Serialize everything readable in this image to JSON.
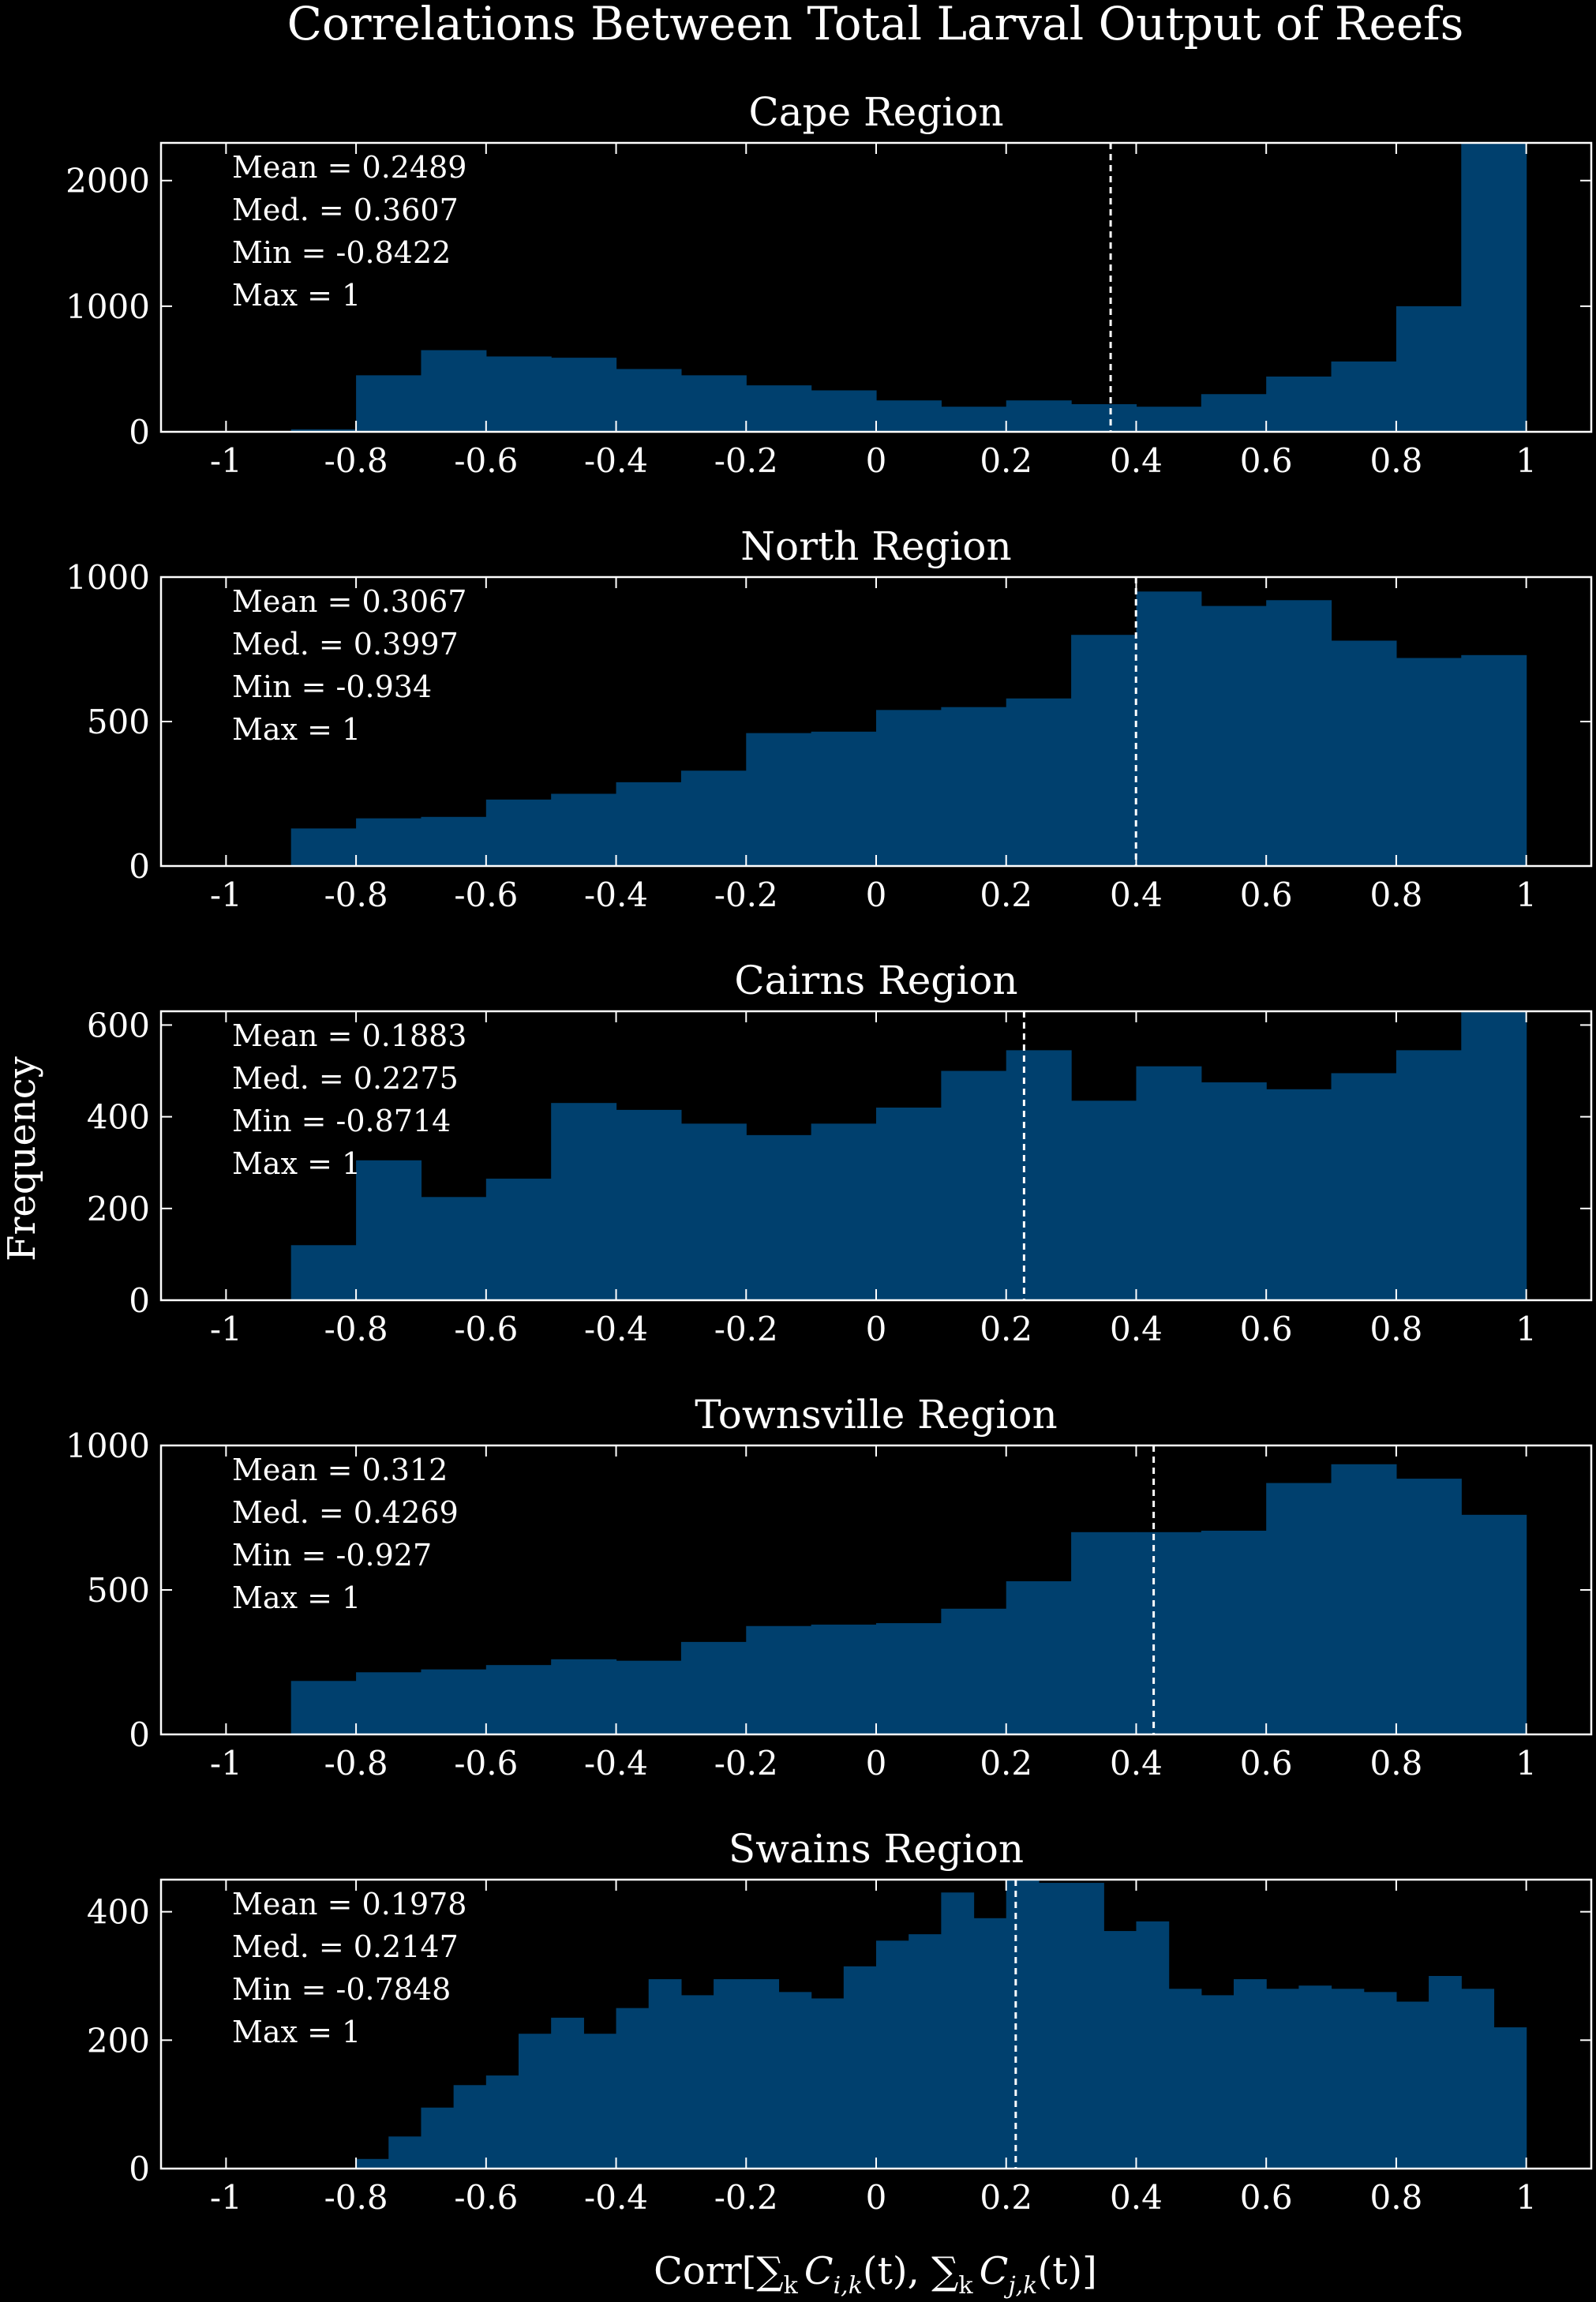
{
  "figure": {
    "title": "Correlations Between Total Larval Output of Reefs",
    "ylabel": "Frequency",
    "xlabel": "Corr[∑k Ci,k(t), ∑k Cj,k(t)]",
    "xlabel_parts": {
      "pre": "Corr[",
      "sum1": "∑",
      "sub_k1": "k",
      "c1": "C",
      "sub_ik": "i,k",
      "t1": "(t), ",
      "sum2": "∑",
      "sub_k2": "k",
      "c2": "C",
      "sub_jk": "j,k",
      "t2": "(t)]"
    },
    "bar_color": "#00406e",
    "background": "#000000",
    "foreground": "#ffffff"
  },
  "chart_data": [
    {
      "type": "bar",
      "title": "Cape Region",
      "xlim": [
        -1.1,
        1.1
      ],
      "ylim": [
        0,
        2300
      ],
      "yticks": [
        0,
        1000,
        2000
      ],
      "xticks": [
        -1,
        -0.8,
        -0.6,
        -0.4,
        -0.2,
        0,
        0.2,
        0.4,
        0.6,
        0.8,
        1
      ],
      "xtick_labels": [
        "-1",
        "-0.8",
        "-0.6",
        "-0.4",
        "-0.2",
        "0",
        "0.2",
        "0.4",
        "0.6",
        "0.8",
        "1"
      ],
      "bin_edges": [
        -0.9,
        -0.8,
        -0.7,
        -0.6,
        -0.5,
        -0.4,
        -0.3,
        -0.2,
        -0.1,
        0.0,
        0.1,
        0.2,
        0.3,
        0.4,
        0.5,
        0.6,
        0.7,
        0.8,
        0.9,
        1.0
      ],
      "values": [
        20,
        450,
        650,
        600,
        590,
        500,
        450,
        370,
        330,
        250,
        200,
        250,
        220,
        200,
        300,
        440,
        560,
        1000,
        2300
      ],
      "mean_line": 0.3607,
      "stats": [
        "Mean = 0.2489",
        "Med. = 0.3607",
        "Min = -0.8422",
        "Max = 1"
      ]
    },
    {
      "type": "bar",
      "title": "North Region",
      "xlim": [
        -1.1,
        1.1
      ],
      "ylim": [
        0,
        1000
      ],
      "yticks": [
        0,
        500,
        1000
      ],
      "xticks": [
        -1,
        -0.8,
        -0.6,
        -0.4,
        -0.2,
        0,
        0.2,
        0.4,
        0.6,
        0.8,
        1
      ],
      "xtick_labels": [
        "-1",
        "-0.8",
        "-0.6",
        "-0.4",
        "-0.2",
        "0",
        "0.2",
        "0.4",
        "0.6",
        "0.8",
        "1"
      ],
      "bin_edges": [
        -0.9,
        -0.8,
        -0.7,
        -0.6,
        -0.5,
        -0.4,
        -0.3,
        -0.2,
        -0.1,
        0.0,
        0.1,
        0.2,
        0.3,
        0.4,
        0.5,
        0.6,
        0.7,
        0.8,
        0.9,
        1.0
      ],
      "values": [
        130,
        165,
        170,
        230,
        250,
        290,
        330,
        460,
        465,
        540,
        550,
        580,
        800,
        950,
        900,
        920,
        780,
        720,
        730
      ],
      "mean_line": 0.3997,
      "stats": [
        "Mean = 0.3067",
        "Med. = 0.3997",
        "Min = -0.934",
        "Max = 1"
      ]
    },
    {
      "type": "bar",
      "title": "Cairns Region",
      "xlim": [
        -1.1,
        1.1
      ],
      "ylim": [
        0,
        630
      ],
      "yticks": [
        0,
        200,
        400,
        600
      ],
      "xticks": [
        -1,
        -0.8,
        -0.6,
        -0.4,
        -0.2,
        0,
        0.2,
        0.4,
        0.6,
        0.8,
        1
      ],
      "xtick_labels": [
        "-1",
        "-0.8",
        "-0.6",
        "-0.4",
        "-0.2",
        "0",
        "0.2",
        "0.4",
        "0.6",
        "0.8",
        "1"
      ],
      "bin_edges": [
        -0.9,
        -0.8,
        -0.7,
        -0.6,
        -0.5,
        -0.4,
        -0.3,
        -0.2,
        -0.1,
        0.0,
        0.1,
        0.2,
        0.3,
        0.4,
        0.5,
        0.6,
        0.7,
        0.8,
        0.9,
        1.0
      ],
      "values": [
        120,
        305,
        225,
        265,
        430,
        415,
        385,
        360,
        385,
        420,
        500,
        545,
        435,
        510,
        475,
        460,
        495,
        545,
        630
      ],
      "mean_line": 0.2275,
      "stats": [
        "Mean = 0.1883",
        "Med. = 0.2275",
        "Min = -0.8714",
        "Max = 1"
      ]
    },
    {
      "type": "bar",
      "title": "Townsville Region",
      "xlim": [
        -1.1,
        1.1
      ],
      "ylim": [
        0,
        1000
      ],
      "yticks": [
        0,
        500,
        1000
      ],
      "xticks": [
        -1,
        -0.8,
        -0.6,
        -0.4,
        -0.2,
        0,
        0.2,
        0.4,
        0.6,
        0.8,
        1
      ],
      "xtick_labels": [
        "-1",
        "-0.8",
        "-0.6",
        "-0.4",
        "-0.2",
        "0",
        "0.2",
        "0.4",
        "0.6",
        "0.8",
        "1"
      ],
      "bin_edges": [
        -0.9,
        -0.8,
        -0.7,
        -0.6,
        -0.5,
        -0.4,
        -0.3,
        -0.2,
        -0.1,
        0.0,
        0.1,
        0.2,
        0.3,
        0.4,
        0.5,
        0.6,
        0.7,
        0.8,
        0.9,
        1.0
      ],
      "values": [
        185,
        215,
        225,
        240,
        260,
        255,
        320,
        375,
        380,
        385,
        435,
        530,
        700,
        700,
        705,
        870,
        935,
        885,
        760
      ],
      "mean_line": 0.4269,
      "stats": [
        "Mean = 0.312",
        "Med. = 0.4269",
        "Min = -0.927",
        "Max = 1"
      ]
    },
    {
      "type": "bar",
      "title": "Swains Region",
      "xlim": [
        -1.1,
        1.1
      ],
      "ylim": [
        0,
        450
      ],
      "yticks": [
        0,
        200,
        400
      ],
      "xticks": [
        -1,
        -0.8,
        -0.6,
        -0.4,
        -0.2,
        0,
        0.2,
        0.4,
        0.6,
        0.8,
        1
      ],
      "xtick_labels": [
        "-1",
        "-0.8",
        "-0.6",
        "-0.4",
        "-0.2",
        "0",
        "0.2",
        "0.4",
        "0.6",
        "0.8",
        "1"
      ],
      "bin_edges": [
        -0.8,
        -0.75,
        -0.7,
        -0.65,
        -0.6,
        -0.55,
        -0.5,
        -0.45,
        -0.4,
        -0.35,
        -0.3,
        -0.25,
        -0.2,
        -0.15,
        -0.1,
        -0.05,
        0.0,
        0.05,
        0.1,
        0.15,
        0.2,
        0.25,
        0.3,
        0.35,
        0.4,
        0.45,
        0.5,
        0.55,
        0.6,
        0.65,
        0.7,
        0.75,
        0.8,
        0.85,
        0.9,
        0.95,
        1.0
      ],
      "values": [
        15,
        50,
        95,
        130,
        145,
        210,
        235,
        210,
        250,
        295,
        270,
        295,
        295,
        275,
        265,
        315,
        355,
        365,
        430,
        390,
        455,
        445,
        445,
        370,
        385,
        280,
        270,
        295,
        280,
        285,
        280,
        275,
        260,
        300,
        280,
        220
      ],
      "mean_line": 0.2147,
      "stats": [
        "Mean = 0.1978",
        "Med. = 0.2147",
        "Min = -0.7848",
        "Max = 1"
      ]
    }
  ]
}
